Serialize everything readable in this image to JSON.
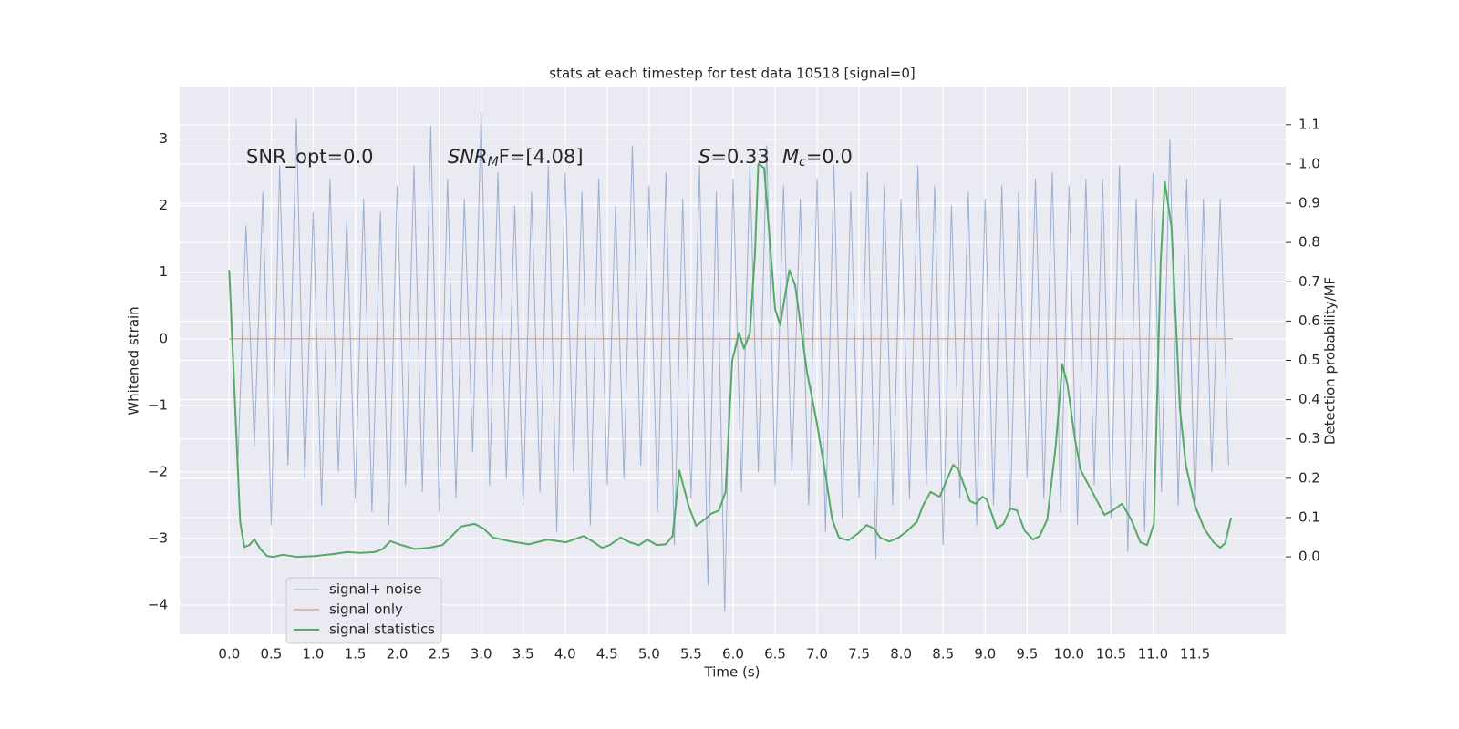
{
  "chart_data": {
    "type": "line",
    "title": "stats at each timestep for test data 10518 [signal=0]",
    "xlabel": "Time (s)",
    "ylabel": "Whitened strain",
    "y2label": "Detection probability/MF",
    "annotations": [
      [
        "SNR_opt=0.0"
      ],
      [
        "SNR",
        "M",
        "F=[4.08]"
      ],
      [
        "S",
        "=0.33"
      ],
      [
        "M",
        "c",
        "=0.0"
      ]
    ],
    "xlim": [
      -0.59,
      12.58
    ],
    "ylim": [
      -4.44,
      3.79
    ],
    "y2lim": [
      -0.197,
      1.197
    ],
    "xticks": [
      {
        "value": 0,
        "label": "0.0"
      },
      0.5,
      {
        "value": 1,
        "label": "1.0"
      },
      1.5,
      {
        "value": 2,
        "label": "2.0"
      },
      2.5,
      {
        "value": 3,
        "label": "3.0"
      },
      3.5,
      {
        "value": 4,
        "label": "4.0"
      },
      4.5,
      {
        "value": 5,
        "label": "5.0"
      },
      5.5,
      {
        "value": 6,
        "label": "6.0"
      },
      6.5,
      {
        "value": 7,
        "label": "7.0"
      },
      7.5,
      {
        "value": 8,
        "label": "8.0"
      },
      8.5,
      {
        "value": 9,
        "label": "9.0"
      },
      9.5,
      {
        "value": 10,
        "label": "10.0"
      },
      10.5,
      {
        "value": 11,
        "label": "11.0"
      },
      11.5
    ],
    "yticks": [
      {
        "value": -4,
        "label": "−4"
      },
      {
        "value": -3,
        "label": "−3"
      },
      {
        "value": -2,
        "label": "−2"
      },
      {
        "value": -1,
        "label": "−1"
      },
      0,
      1,
      2,
      3
    ],
    "y2ticks": [
      {
        "value": 0,
        "label": "0.0"
      },
      0.1,
      0.2,
      0.3,
      0.4,
      0.5,
      0.6,
      0.7,
      0.8,
      0.9,
      {
        "value": 1,
        "label": "1.0"
      },
      1.1
    ],
    "grid": true,
    "legend": "lower left",
    "series": [
      {
        "name": "signal+ noise",
        "color": "#4c72b0",
        "x": [
          0.0,
          0.1,
          0.2,
          0.3,
          0.4,
          0.5,
          0.6,
          0.7,
          0.8,
          0.9,
          1.0,
          1.1,
          1.2,
          1.3,
          1.4,
          1.5,
          1.6,
          1.7,
          1.8,
          1.9,
          2.0,
          2.1,
          2.2,
          2.3,
          2.4,
          2.5,
          2.6,
          2.7,
          2.8,
          2.9,
          3.0,
          3.1,
          3.2,
          3.3,
          3.4,
          3.5,
          3.6,
          3.7,
          3.8,
          3.9,
          4.0,
          4.1,
          4.2,
          4.3,
          4.4,
          4.5,
          4.6,
          4.7,
          4.8,
          4.9,
          5.0,
          5.1,
          5.2,
          5.3,
          5.4,
          5.5,
          5.6,
          5.7,
          5.8,
          5.9,
          6.0,
          6.1,
          6.2,
          6.3,
          6.4,
          6.5,
          6.6,
          6.7,
          6.8,
          6.9,
          7.0,
          7.1,
          7.2,
          7.3,
          7.4,
          7.5,
          7.6,
          7.7,
          7.8,
          7.9,
          8.0,
          8.1,
          8.2,
          8.3,
          8.4,
          8.5,
          8.6,
          8.7,
          8.8,
          8.9,
          9.0,
          9.1,
          9.2,
          9.3,
          9.4,
          9.5,
          9.6,
          9.7,
          9.8,
          9.9,
          10.0,
          10.1,
          10.2,
          10.3,
          10.4,
          10.5,
          10.6,
          10.7,
          10.8,
          10.9,
          11.0,
          11.1,
          11.2,
          11.3,
          11.4,
          11.5,
          11.6,
          11.7,
          11.8,
          11.9
        ],
        "values": [
          1.0,
          -2.0,
          1.7,
          -1.6,
          2.2,
          -2.8,
          2.6,
          -1.9,
          3.3,
          -2.1,
          1.9,
          -2.5,
          2.4,
          -2.0,
          1.8,
          -2.4,
          2.1,
          -2.6,
          1.9,
          -2.8,
          2.3,
          -2.2,
          2.6,
          -2.3,
          3.2,
          -2.6,
          2.4,
          -2.4,
          2.1,
          -1.7,
          3.4,
          -2.2,
          2.5,
          -2.1,
          2.0,
          -2.5,
          2.2,
          -2.3,
          2.6,
          -2.9,
          2.5,
          -2.0,
          2.2,
          -2.8,
          2.4,
          -2.2,
          2.0,
          -2.1,
          2.9,
          -1.9,
          2.3,
          -2.6,
          2.5,
          -3.1,
          2.1,
          -2.4,
          2.6,
          -3.7,
          2.2,
          -4.1,
          2.4,
          -2.3,
          2.6,
          -2.0,
          2.9,
          -2.2,
          2.3,
          -2.0,
          2.1,
          -2.5,
          2.4,
          -2.9,
          2.6,
          -2.7,
          2.2,
          -2.4,
          2.5,
          -3.3,
          2.3,
          -2.5,
          2.1,
          -2.4,
          2.6,
          -2.2,
          2.3,
          -3.1,
          2.0,
          -2.4,
          2.2,
          -2.8,
          2.1,
          -2.5,
          2.3,
          -2.6,
          2.2,
          -2.1,
          2.4,
          -2.4,
          2.5,
          -2.6,
          2.3,
          -2.8,
          2.4,
          -2.2,
          2.4,
          -2.7,
          2.6,
          -3.2,
          2.1,
          -2.9,
          2.5,
          -2.3,
          3.0,
          -2.5,
          2.4,
          -2.6,
          2.1,
          -2.0,
          2.1,
          -1.9
        ]
      },
      {
        "name": "signal only",
        "color": "#dd8452",
        "x": [
          0.0,
          11.95
        ],
        "values": [
          0,
          0
        ]
      },
      {
        "name": "signal statistics",
        "color": "#55a868",
        "axis": "y2",
        "x": [
          0.0,
          0.13,
          0.18,
          0.24,
          0.3,
          0.37,
          0.45,
          0.53,
          0.64,
          0.8,
          1.02,
          1.24,
          1.4,
          1.56,
          1.73,
          1.83,
          1.92,
          2.05,
          2.21,
          2.38,
          2.54,
          2.65,
          2.76,
          2.92,
          3.03,
          3.14,
          3.36,
          3.57,
          3.79,
          4.01,
          4.22,
          4.33,
          4.44,
          4.53,
          4.66,
          4.77,
          4.88,
          4.98,
          5.09,
          5.2,
          5.28,
          5.36,
          5.47,
          5.56,
          5.66,
          5.74,
          5.83,
          5.91,
          5.99,
          6.07,
          6.13,
          6.2,
          6.26,
          6.3,
          6.37,
          6.5,
          6.56,
          6.67,
          6.74,
          6.88,
          6.99,
          7.1,
          7.18,
          7.26,
          7.37,
          7.48,
          7.59,
          7.68,
          7.75,
          7.86,
          7.97,
          8.08,
          8.19,
          8.26,
          8.35,
          8.46,
          8.62,
          8.68,
          8.82,
          8.89,
          8.97,
          9.02,
          9.14,
          9.22,
          9.3,
          9.38,
          9.47,
          9.57,
          9.65,
          9.74,
          9.84,
          9.92,
          9.98,
          10.07,
          10.14,
          10.25,
          10.42,
          10.52,
          10.63,
          10.74,
          10.85,
          10.93,
          11.01,
          11.09,
          11.14,
          11.22,
          11.32,
          11.39,
          11.5,
          11.61,
          11.72,
          11.8,
          11.86,
          11.93
        ],
        "values": [
          0.73,
          0.09,
          0.025,
          0.03,
          0.045,
          0.02,
          0.002,
          0.0,
          0.005,
          0.0,
          0.002,
          0.007,
          0.012,
          0.01,
          0.012,
          0.02,
          0.04,
          0.03,
          0.02,
          0.023,
          0.03,
          0.053,
          0.077,
          0.084,
          0.072,
          0.049,
          0.039,
          0.032,
          0.044,
          0.037,
          0.053,
          0.039,
          0.023,
          0.03,
          0.049,
          0.037,
          0.03,
          0.044,
          0.03,
          0.032,
          0.053,
          0.22,
          0.13,
          0.079,
          0.095,
          0.11,
          0.118,
          0.165,
          0.5,
          0.57,
          0.53,
          0.57,
          0.77,
          1.0,
          0.99,
          0.63,
          0.59,
          0.73,
          0.69,
          0.47,
          0.35,
          0.21,
          0.095,
          0.049,
          0.042,
          0.058,
          0.081,
          0.072,
          0.049,
          0.039,
          0.049,
          0.067,
          0.09,
          0.13,
          0.165,
          0.153,
          0.234,
          0.223,
          0.142,
          0.135,
          0.153,
          0.146,
          0.072,
          0.084,
          0.123,
          0.118,
          0.067,
          0.044,
          0.053,
          0.095,
          0.28,
          0.49,
          0.44,
          0.3,
          0.22,
          0.176,
          0.107,
          0.118,
          0.135,
          0.095,
          0.037,
          0.03,
          0.084,
          0.745,
          0.954,
          0.84,
          0.377,
          0.234,
          0.13,
          0.072,
          0.037,
          0.023,
          0.035,
          0.1
        ]
      }
    ]
  }
}
